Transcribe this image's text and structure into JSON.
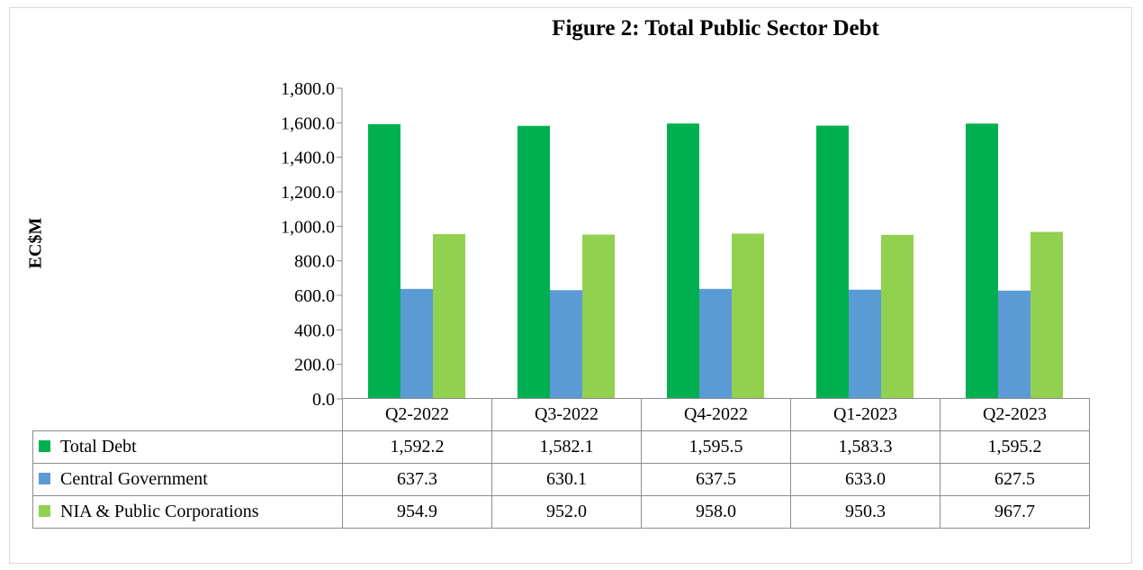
{
  "chart_data": {
    "type": "bar",
    "title": "Figure 2: Total Public Sector Debt",
    "ylabel": "EC$M",
    "xlabel": "",
    "ylim": [
      0,
      1800
    ],
    "y_ticks": [
      "0.0",
      "200.0",
      "400.0",
      "600.0",
      "800.0",
      "1,000.0",
      "1,200.0",
      "1,400.0",
      "1,600.0",
      "1,800.0"
    ],
    "categories": [
      "Q2-2022",
      "Q3-2022",
      "Q4-2022",
      "Q1-2023",
      "Q2-2023"
    ],
    "series": [
      {
        "name": "Total Debt",
        "color": "#00b050",
        "values": [
          1592.2,
          1582.1,
          1595.5,
          1583.3,
          1595.2
        ],
        "labels": [
          "1,592.2",
          "1,582.1",
          "1,595.5",
          "1,583.3",
          "1,595.2"
        ]
      },
      {
        "name": "Central Government",
        "color": "#5b9bd5",
        "values": [
          637.3,
          630.1,
          637.5,
          633.0,
          627.5
        ],
        "labels": [
          "637.3",
          "630.1",
          "637.5",
          "633.0",
          "627.5"
        ]
      },
      {
        "name": "NIA & Public Corporations",
        "color": "#92d050",
        "values": [
          954.9,
          952.0,
          958.0,
          950.3,
          967.7
        ],
        "labels": [
          "954.9",
          "952.0",
          "958.0",
          "950.3",
          "967.7"
        ]
      }
    ],
    "grid": false,
    "legend": "data-table"
  }
}
